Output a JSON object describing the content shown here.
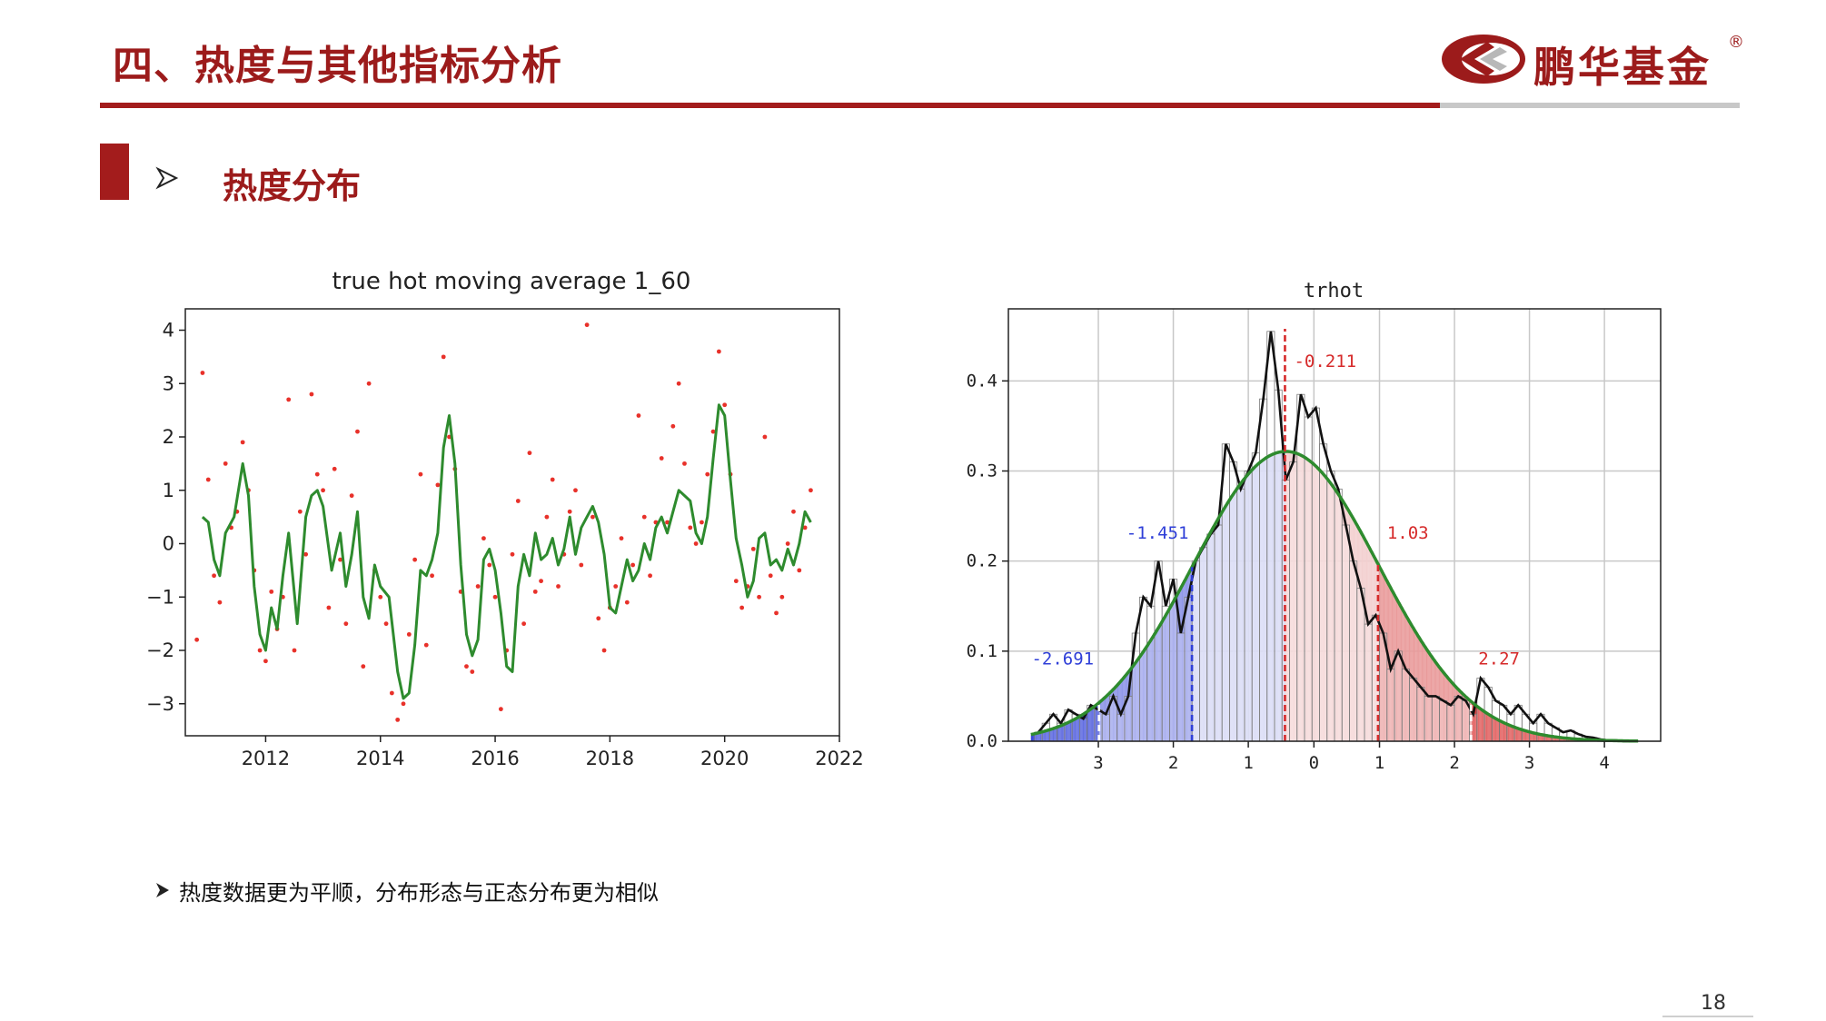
{
  "header": {
    "title": "四、热度与其他指标分析",
    "brand": "鹏华基金",
    "registered_mark": "®"
  },
  "section": {
    "title": "热度分布"
  },
  "note": "热度数据更为平顺，分布形态与正态分布更为相似",
  "page_number": "18",
  "colors": {
    "brand_red": "#9c1b1b",
    "rule_grey": "#c8c8c8",
    "scatter_red": "#e8312a",
    "ma_green": "#2e8b2e",
    "neg_blue": "#2f3fd8",
    "pos_red": "#d62a2a"
  },
  "icons": {
    "section_arrow": "arrowhead-icon",
    "note_arrow": "arrowhead-icon"
  },
  "chart_data": [
    {
      "type": "scatter",
      "title": "true hot moving average 1_60",
      "xlabel": "",
      "ylabel": "",
      "xlim": [
        2010.6,
        2022.0
      ],
      "ylim": [
        -3.6,
        4.4
      ],
      "x_ticks": [
        "2012",
        "2014",
        "2016",
        "2018",
        "2020",
        "2022"
      ],
      "y_ticks": [
        "4",
        "3",
        "2",
        "1",
        "0",
        "−1",
        "−2",
        "−3"
      ],
      "grid": false,
      "series": [
        {
          "style": "red-dots",
          "x": [
            2010.8,
            2010.9,
            2011.0,
            2011.1,
            2011.2,
            2011.3,
            2011.4,
            2011.5,
            2011.6,
            2011.7,
            2011.8,
            2011.9,
            2012.0,
            2012.1,
            2012.2,
            2012.3,
            2012.4,
            2012.5,
            2012.6,
            2012.7,
            2012.8,
            2012.9,
            2013.0,
            2013.1,
            2013.2,
            2013.3,
            2013.4,
            2013.5,
            2013.6,
            2013.7,
            2013.8,
            2013.9,
            2014.0,
            2014.1,
            2014.2,
            2014.3,
            2014.4,
            2014.5,
            2014.6,
            2014.7,
            2014.8,
            2014.9,
            2015.0,
            2015.1,
            2015.2,
            2015.3,
            2015.4,
            2015.5,
            2015.6,
            2015.7,
            2015.8,
            2015.9,
            2016.0,
            2016.1,
            2016.2,
            2016.3,
            2016.4,
            2016.5,
            2016.6,
            2016.7,
            2016.8,
            2016.9,
            2017.0,
            2017.1,
            2017.2,
            2017.3,
            2017.4,
            2017.5,
            2017.6,
            2017.7,
            2017.8,
            2017.9,
            2018.0,
            2018.1,
            2018.2,
            2018.3,
            2018.4,
            2018.5,
            2018.6,
            2018.7,
            2018.8,
            2018.9,
            2019.0,
            2019.1,
            2019.2,
            2019.3,
            2019.4,
            2019.5,
            2019.6,
            2019.7,
            2019.8,
            2019.9,
            2020.0,
            2020.1,
            2020.2,
            2020.3,
            2020.4,
            2020.5,
            2020.6,
            2020.7,
            2020.8,
            2020.9,
            2021.0,
            2021.1,
            2021.2,
            2021.3,
            2021.4,
            2021.5
          ],
          "y": [
            -1.8,
            3.2,
            1.2,
            -0.6,
            -1.1,
            1.5,
            0.3,
            0.6,
            1.9,
            1.0,
            -0.5,
            -2.0,
            -2.2,
            -0.9,
            -1.6,
            -1.0,
            2.7,
            -2.0,
            0.6,
            -0.2,
            2.8,
            1.3,
            1.0,
            -1.2,
            1.4,
            -0.3,
            -1.5,
            0.9,
            2.1,
            -2.3,
            3.0,
            -0.5,
            -1.0,
            -1.5,
            -2.8,
            -3.3,
            -3.0,
            -1.7,
            -0.3,
            1.3,
            -1.9,
            -0.6,
            1.1,
            3.5,
            2.0,
            1.4,
            -0.9,
            -2.3,
            -2.4,
            -0.8,
            0.1,
            -0.4,
            -1.0,
            -3.1,
            -2.0,
            -0.2,
            0.8,
            -1.5,
            1.7,
            -0.9,
            -0.7,
            0.5,
            1.2,
            -0.8,
            -0.2,
            0.6,
            1.0,
            -0.4,
            4.1,
            0.5,
            -1.4,
            -2.0,
            -1.2,
            -0.8,
            0.1,
            -1.1,
            -0.4,
            2.4,
            0.5,
            -0.6,
            0.4,
            1.6,
            0.4,
            2.2,
            3.0,
            1.5,
            0.3,
            0.0,
            0.4,
            1.3,
            2.1,
            3.6,
            2.6,
            1.3,
            -0.7,
            -1.2,
            -0.8,
            -0.1,
            -1.0,
            2.0,
            -0.6,
            -1.3,
            -1.0,
            0.0,
            0.6,
            -0.5,
            0.3,
            1.0
          ]
        },
        {
          "style": "green-line",
          "x": [
            2010.9,
            2011.0,
            2011.1,
            2011.2,
            2011.3,
            2011.45,
            2011.6,
            2011.7,
            2011.8,
            2011.9,
            2012.0,
            2012.1,
            2012.2,
            2012.3,
            2012.4,
            2012.55,
            2012.7,
            2012.8,
            2012.9,
            2013.0,
            2013.15,
            2013.3,
            2013.4,
            2013.5,
            2013.6,
            2013.7,
            2013.8,
            2013.9,
            2014.0,
            2014.15,
            2014.3,
            2014.4,
            2014.5,
            2014.6,
            2014.7,
            2014.8,
            2014.9,
            2015.0,
            2015.1,
            2015.2,
            2015.3,
            2015.4,
            2015.5,
            2015.6,
            2015.7,
            2015.8,
            2015.9,
            2016.0,
            2016.1,
            2016.2,
            2016.3,
            2016.4,
            2016.5,
            2016.6,
            2016.7,
            2016.8,
            2016.9,
            2017.0,
            2017.1,
            2017.2,
            2017.3,
            2017.4,
            2017.5,
            2017.6,
            2017.7,
            2017.8,
            2017.9,
            2018.0,
            2018.1,
            2018.2,
            2018.3,
            2018.4,
            2018.5,
            2018.6,
            2018.7,
            2018.8,
            2018.9,
            2019.0,
            2019.1,
            2019.2,
            2019.3,
            2019.4,
            2019.5,
            2019.6,
            2019.7,
            2019.8,
            2019.9,
            2020.0,
            2020.1,
            2020.2,
            2020.3,
            2020.4,
            2020.5,
            2020.6,
            2020.7,
            2020.8,
            2020.9,
            2021.0,
            2021.1,
            2021.2,
            2021.3,
            2021.4,
            2021.5
          ],
          "y": [
            0.5,
            0.4,
            -0.3,
            -0.6,
            0.2,
            0.5,
            1.5,
            0.9,
            -0.8,
            -1.7,
            -2.0,
            -1.2,
            -1.6,
            -0.6,
            0.2,
            -1.5,
            0.5,
            0.9,
            1.0,
            0.7,
            -0.5,
            0.2,
            -0.8,
            -0.2,
            0.6,
            -1.0,
            -1.4,
            -0.4,
            -0.8,
            -1.0,
            -2.4,
            -2.9,
            -2.8,
            -1.9,
            -0.5,
            -0.6,
            -0.3,
            0.2,
            1.8,
            2.4,
            1.5,
            -0.4,
            -1.7,
            -2.1,
            -1.8,
            -0.3,
            -0.1,
            -0.5,
            -1.3,
            -2.3,
            -2.4,
            -0.8,
            -0.2,
            -0.6,
            0.2,
            -0.3,
            -0.2,
            0.1,
            -0.4,
            -0.1,
            0.5,
            -0.2,
            0.3,
            0.5,
            0.7,
            0.4,
            -0.2,
            -1.2,
            -1.3,
            -0.8,
            -0.3,
            -0.7,
            -0.5,
            0.0,
            -0.3,
            0.3,
            0.5,
            0.2,
            0.6,
            1.0,
            0.9,
            0.8,
            0.2,
            0.0,
            0.5,
            1.6,
            2.6,
            2.4,
            1.2,
            0.1,
            -0.4,
            -1.0,
            -0.7,
            0.1,
            0.2,
            -0.4,
            -0.3,
            -0.5,
            -0.1,
            -0.4,
            0.0,
            0.6,
            0.4
          ]
        }
      ]
    },
    {
      "type": "bar",
      "title": "trhot",
      "xlabel": "",
      "ylabel": "",
      "xlim": [
        -3.9,
        4.8
      ],
      "ylim": [
        0.0,
        0.48
      ],
      "x_ticks": [
        {
          "value": -2.7,
          "label": "3"
        },
        {
          "value": -1.7,
          "label": "2"
        },
        {
          "value": -0.7,
          "label": "1"
        },
        {
          "value": 0.175,
          "label": "0"
        },
        {
          "value": 1.05,
          "label": "1"
        },
        {
          "value": 2.05,
          "label": "2"
        },
        {
          "value": 3.05,
          "label": "3"
        },
        {
          "value": 4.05,
          "label": "4"
        }
      ],
      "y_ticks": [
        "0.0",
        "0.1",
        "0.2",
        "0.3",
        "0.4"
      ],
      "grid": true,
      "histogram": {
        "bin_width": 0.1,
        "x": [
          -3.5,
          -3.4,
          -3.3,
          -3.2,
          -3.1,
          -3.0,
          -2.9,
          -2.8,
          -2.7,
          -2.6,
          -2.5,
          -2.4,
          -2.3,
          -2.2,
          -2.1,
          -2.0,
          -1.9,
          -1.8,
          -1.7,
          -1.6,
          -1.5,
          -1.4,
          -1.3,
          -1.2,
          -1.1,
          -1.0,
          -0.9,
          -0.8,
          -0.7,
          -0.6,
          -0.5,
          -0.4,
          -0.3,
          -0.2,
          -0.1,
          0.0,
          0.1,
          0.2,
          0.3,
          0.4,
          0.5,
          0.6,
          0.7,
          0.8,
          0.9,
          1.0,
          1.1,
          1.2,
          1.3,
          1.4,
          1.5,
          1.6,
          1.7,
          1.8,
          1.9,
          2.0,
          2.1,
          2.2,
          2.3,
          2.4,
          2.5,
          2.6,
          2.7,
          2.8,
          2.9,
          3.0,
          3.1,
          3.2,
          3.3,
          3.4,
          3.5,
          3.6,
          3.7,
          3.8,
          3.9,
          4.0,
          4.1,
          4.2,
          4.3,
          4.4
        ],
        "density": [
          0.01,
          0.02,
          0.03,
          0.02,
          0.035,
          0.03,
          0.025,
          0.04,
          0.035,
          0.03,
          0.05,
          0.03,
          0.05,
          0.12,
          0.16,
          0.15,
          0.2,
          0.15,
          0.18,
          0.12,
          0.16,
          0.2,
          0.215,
          0.23,
          0.24,
          0.33,
          0.31,
          0.28,
          0.3,
          0.32,
          0.38,
          0.455,
          0.39,
          0.29,
          0.31,
          0.385,
          0.36,
          0.37,
          0.33,
          0.3,
          0.28,
          0.24,
          0.2,
          0.17,
          0.13,
          0.14,
          0.12,
          0.08,
          0.1,
          0.08,
          0.07,
          0.06,
          0.05,
          0.05,
          0.045,
          0.04,
          0.05,
          0.045,
          0.03,
          0.07,
          0.06,
          0.045,
          0.04,
          0.03,
          0.04,
          0.03,
          0.02,
          0.03,
          0.02,
          0.015,
          0.01,
          0.012,
          0.008,
          0.005,
          0.004,
          0.002,
          0.001,
          0.001,
          0.0,
          0.0
        ]
      },
      "normal_fit": {
        "mean": -0.2,
        "sd": 1.24
      },
      "quantile_lines": [
        {
          "value": -2.691,
          "label": "-2.691",
          "color": "blue"
        },
        {
          "value": -1.451,
          "label": "-1.451",
          "color": "blue"
        },
        {
          "value": -0.211,
          "label": "-0.211",
          "color": "red"
        },
        {
          "value": 1.03,
          "label": "1.03",
          "color": "red"
        },
        {
          "value": 2.27,
          "label": "2.27",
          "color": "red"
        }
      ]
    }
  ]
}
